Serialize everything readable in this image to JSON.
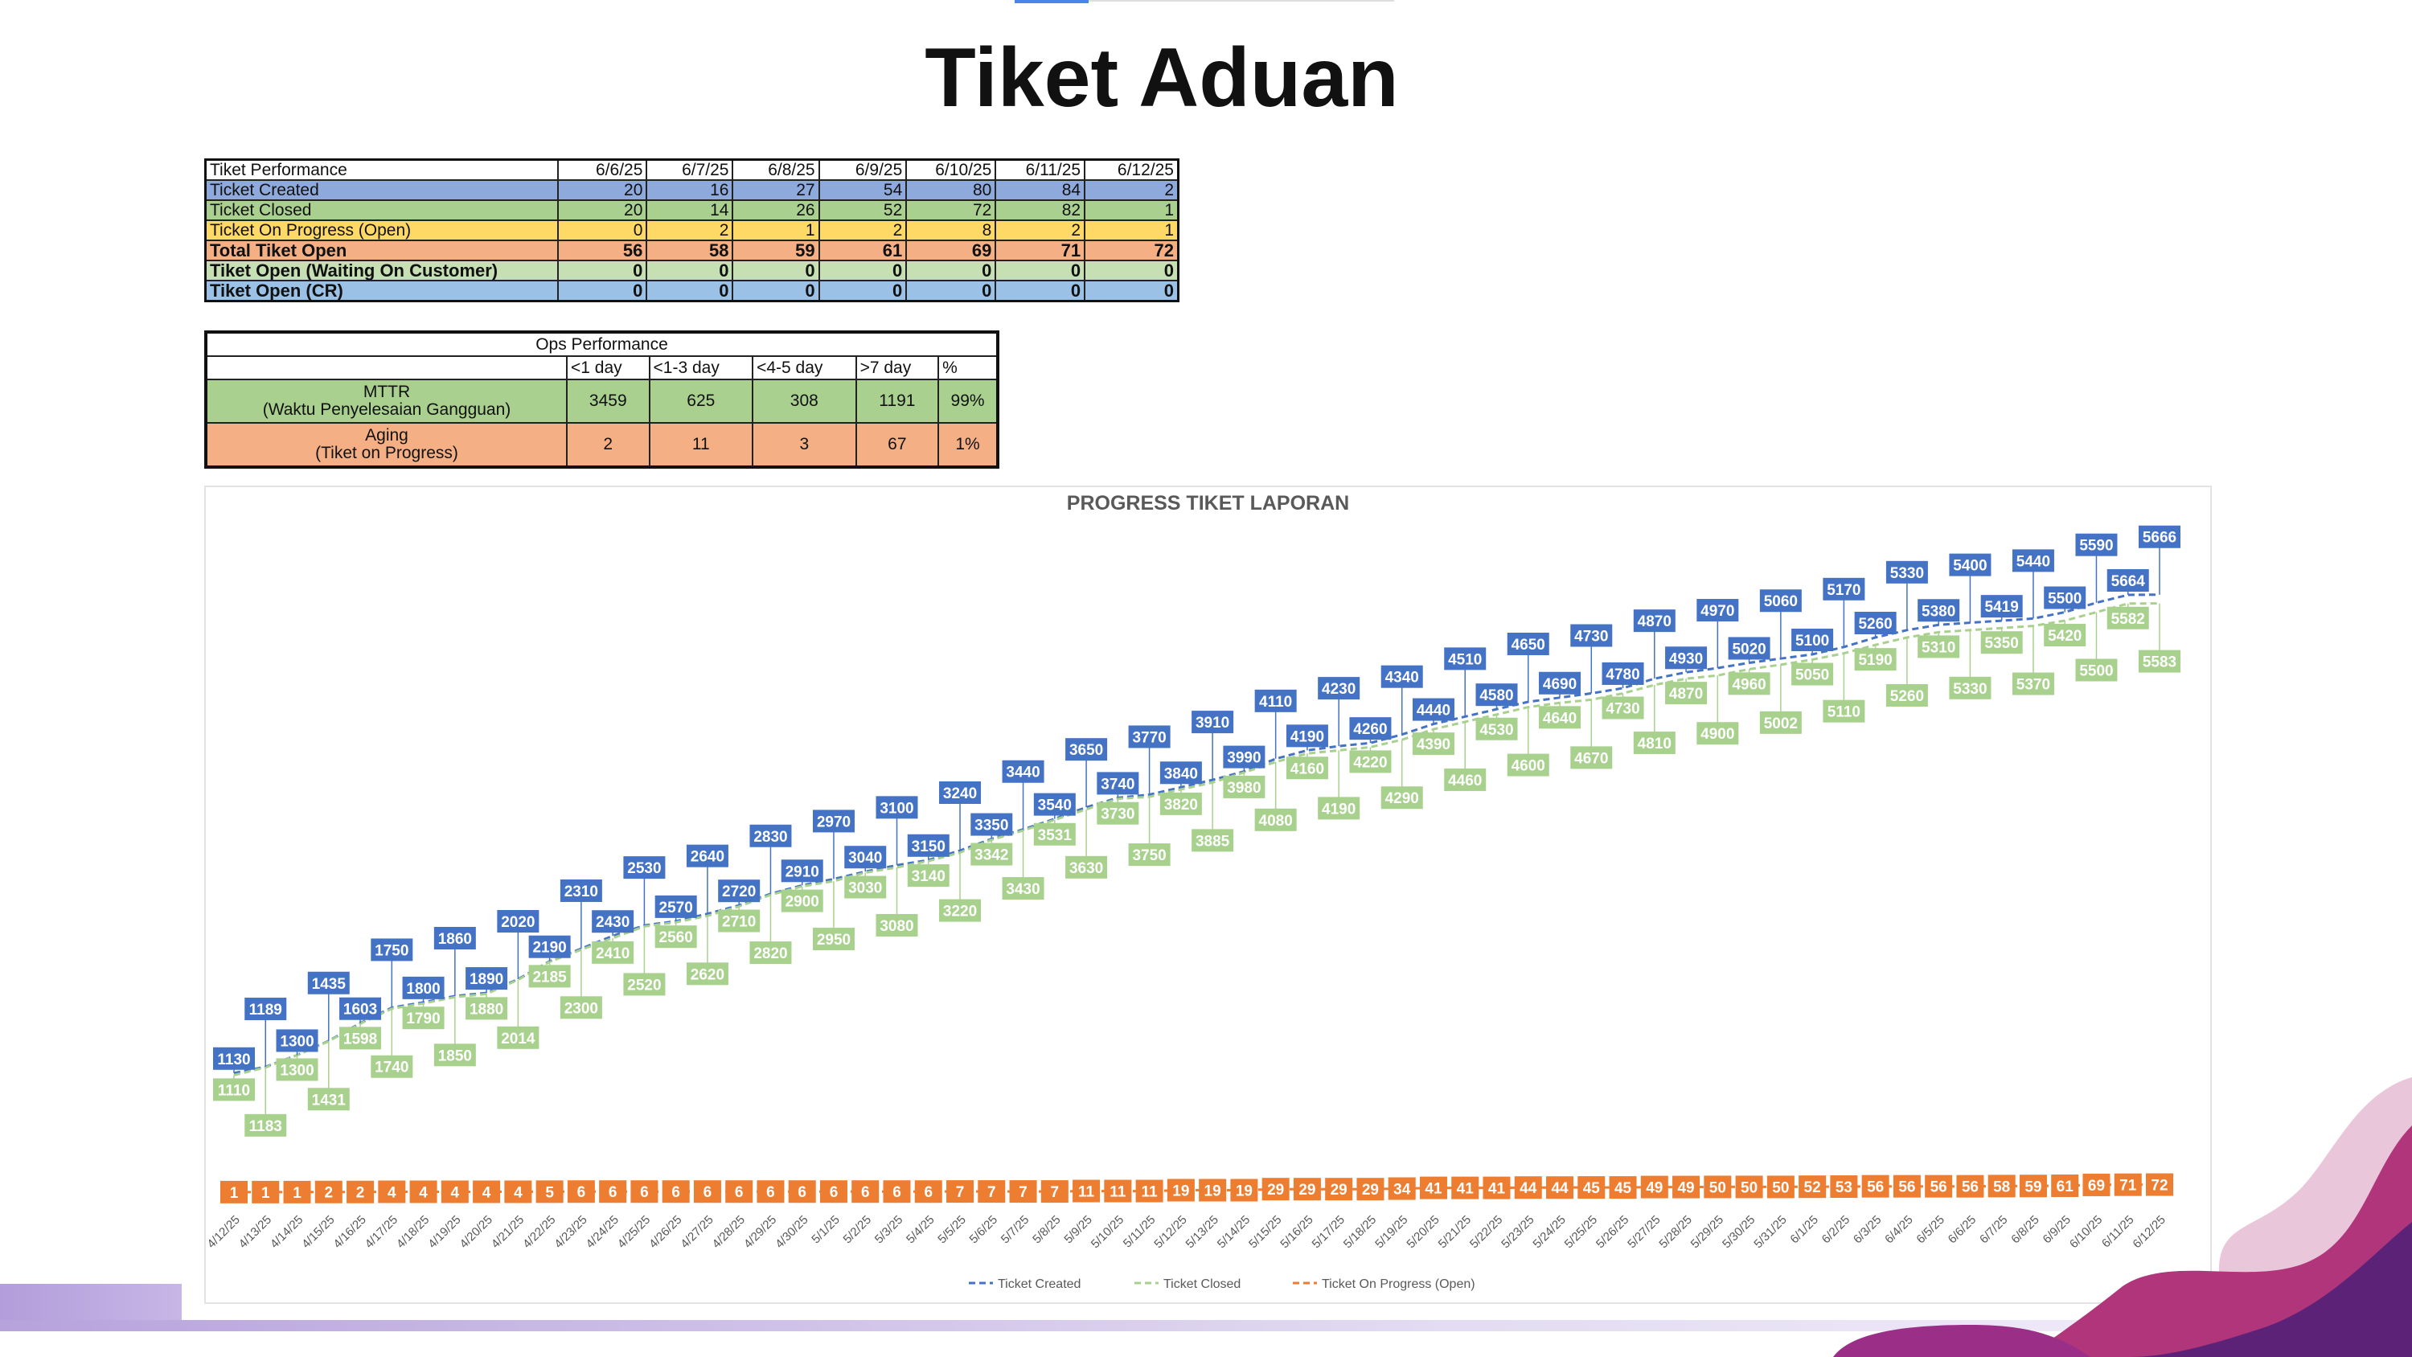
{
  "title": "Tiket Aduan",
  "ticket_table": {
    "header": "Tiket Performance",
    "dates": [
      "6/6/25",
      "6/7/25",
      "6/8/25",
      "6/9/25",
      "6/10/25",
      "6/11/25",
      "6/12/25"
    ],
    "rows": [
      {
        "label": "Ticket Created",
        "values": [
          "20",
          "16",
          "27",
          "54",
          "80",
          "84",
          "2"
        ],
        "color": "#8ea9db",
        "bold": false
      },
      {
        "label": "Ticket Closed",
        "values": [
          "20",
          "14",
          "26",
          "52",
          "72",
          "82",
          "1"
        ],
        "color": "#a9d08e",
        "bold": false
      },
      {
        "label": "Ticket On Progress (Open)",
        "values": [
          "0",
          "2",
          "1",
          "2",
          "8",
          "2",
          "1"
        ],
        "color": "#ffd966",
        "bold": false
      },
      {
        "label": "Total Tiket Open",
        "values": [
          "56",
          "58",
          "59",
          "61",
          "69",
          "71",
          "72"
        ],
        "color": "#f4b084",
        "bold": true
      },
      {
        "label": "Tiket Open (Waiting On Customer)",
        "values": [
          "0",
          "0",
          "0",
          "0",
          "0",
          "0",
          "0"
        ],
        "color": "#c6e0b4",
        "bold": true
      },
      {
        "label": "Tiket Open (CR)",
        "values": [
          "0",
          "0",
          "0",
          "0",
          "0",
          "0",
          "0"
        ],
        "color": "#9bc2e6",
        "bold": true
      }
    ]
  },
  "ops_table": {
    "header": "Ops Performance",
    "columns": [
      "<1 day",
      "<1-3 day",
      "<4-5 day",
      ">7 day",
      "%"
    ],
    "rows": [
      {
        "label": "MTTR",
        "sublabel": "(Waktu Penyelesaian Gangguan)",
        "values": [
          "3459",
          "625",
          "308",
          "1191",
          "99%"
        ],
        "color": "#a9d08e"
      },
      {
        "label": "Aging",
        "sublabel": "(Tiket on Progress)",
        "values": [
          "2",
          "11",
          "3",
          "67",
          "1%"
        ],
        "color": "#f4b084"
      }
    ]
  },
  "chart_data": {
    "type": "line",
    "title": "PROGRESS TIKET LAPORAN",
    "xlabel": "",
    "ylabel": "",
    "ylim": [
      0,
      5664
    ],
    "legend_position": "bottom",
    "x": [
      "4/12/25",
      "4/13/25",
      "4/14/25",
      "4/15/25",
      "4/16/25",
      "4/17/25",
      "4/18/25",
      "4/19/25",
      "4/20/25",
      "4/21/25",
      "4/22/25",
      "4/23/25",
      "4/24/25",
      "4/25/25",
      "4/26/25",
      "4/27/25",
      "4/28/25",
      "4/29/25",
      "4/30/25",
      "5/1/25",
      "5/2/25",
      "5/3/25",
      "5/4/25",
      "5/5/25",
      "5/6/25",
      "5/7/25",
      "5/8/25",
      "5/9/25",
      "5/10/25",
      "5/11/25",
      "5/12/25",
      "5/13/25",
      "5/14/25",
      "5/15/25",
      "5/16/25",
      "5/17/25",
      "5/18/25",
      "5/19/25",
      "5/20/25",
      "5/21/25",
      "5/22/25",
      "5/23/25",
      "5/24/25",
      "5/25/25",
      "5/26/25",
      "5/27/25",
      "5/28/25",
      "5/29/25",
      "5/30/25",
      "5/31/25",
      "6/1/25",
      "6/2/25",
      "6/3/25",
      "6/4/25",
      "6/5/25",
      "6/6/25",
      "6/7/25",
      "6/8/25",
      "6/9/25",
      "6/10/25",
      "6/11/25",
      "6/12/25"
    ],
    "series": [
      {
        "name": "Ticket Created",
        "color": "#4472c4",
        "values": [
          1130,
          1189,
          1300,
          1435,
          1603,
          1750,
          1800,
          1860,
          1890,
          2020,
          2190,
          2310,
          2430,
          2530,
          2570,
          2640,
          2720,
          2830,
          2910,
          2970,
          3040,
          3100,
          3150,
          3240,
          3350,
          3440,
          3540,
          3650,
          3740,
          3770,
          3840,
          3910,
          3990,
          4110,
          4190,
          4230,
          4260,
          4340,
          4440,
          4510,
          4580,
          4650,
          4690,
          4730,
          4780,
          4870,
          4930,
          4970,
          5020,
          5060,
          5100,
          5170,
          5260,
          5330,
          5380,
          5400,
          5419,
          5440,
          5500,
          5590,
          5664,
          5666
        ]
      },
      {
        "name": "Ticket Closed",
        "color": "#a9d18e",
        "values": [
          1110,
          1183,
          1300,
          1431,
          1598,
          1740,
          1790,
          1850,
          1880,
          2014,
          2185,
          2300,
          2410,
          2520,
          2560,
          2620,
          2710,
          2820,
          2900,
          2950,
          3030,
          3080,
          3140,
          3220,
          3342,
          3430,
          3531,
          3630,
          3730,
          3750,
          3820,
          3885,
          3980,
          4080,
          4160,
          4190,
          4220,
          4290,
          4390,
          4460,
          4530,
          4600,
          4640,
          4670,
          4730,
          4810,
          4870,
          4900,
          4960,
          5002,
          5050,
          5110,
          5190,
          5260,
          5310,
          5330,
          5350,
          5370,
          5420,
          5500,
          5582,
          5583
        ]
      },
      {
        "name": "Ticket On Progress (Open)",
        "color": "#ed7d31",
        "values": [
          1,
          1,
          1,
          2,
          2,
          4,
          4,
          4,
          4,
          4,
          5,
          6,
          6,
          6,
          6,
          6,
          6,
          6,
          6,
          6,
          6,
          6,
          6,
          7,
          7,
          7,
          7,
          11,
          11,
          11,
          19,
          19,
          19,
          29,
          29,
          29,
          29,
          34,
          41,
          41,
          41,
          44,
          44,
          45,
          45,
          49,
          49,
          50,
          50,
          50,
          52,
          53,
          56,
          56,
          56,
          56,
          58,
          59,
          61,
          69,
          71,
          72
        ]
      }
    ]
  }
}
